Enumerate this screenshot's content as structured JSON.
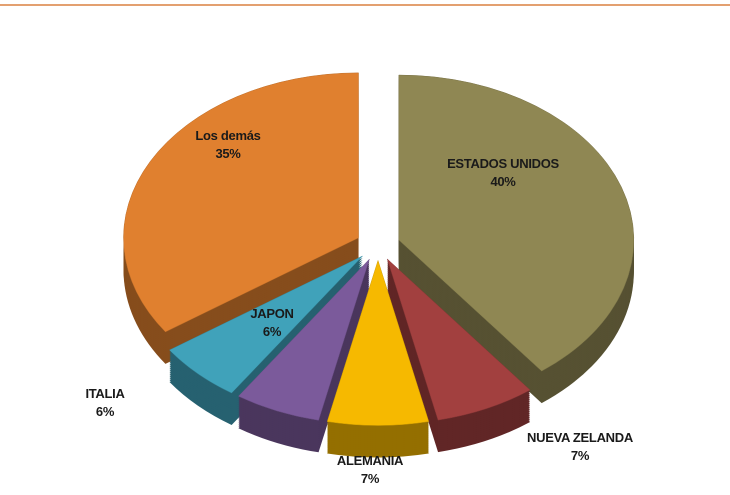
{
  "chart_data": {
    "type": "pie",
    "categories": [
      "ESTADOS UNIDOS",
      "NUEVA ZELANDA",
      "ALEMANIA",
      "JAPON",
      "ITALIA",
      "Los demás"
    ],
    "values": [
      40,
      7,
      7,
      6,
      6,
      35
    ],
    "value_labels": [
      "40%",
      "7%",
      "7%",
      "6%",
      "6%",
      "35%"
    ],
    "colors": [
      "#8f8753",
      "#a2403f",
      "#f6b900",
      "#7b5a9b",
      "#40a2ba",
      "#e0802f"
    ]
  }
}
